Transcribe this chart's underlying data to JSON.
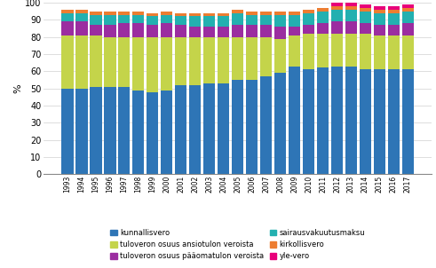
{
  "years": [
    1993,
    1994,
    1995,
    1996,
    1997,
    1998,
    1999,
    2000,
    2001,
    2002,
    2003,
    2004,
    2005,
    2006,
    2007,
    2008,
    2009,
    2010,
    2011,
    2012,
    2013,
    2014,
    2015,
    2016,
    2017
  ],
  "kunnallisvero": [
    50,
    50,
    51,
    51,
    51,
    49,
    48,
    49,
    52,
    52,
    53,
    53,
    55,
    55,
    57,
    59,
    63,
    61,
    62,
    63,
    63,
    61,
    61,
    61,
    61
  ],
  "ansiotulo": [
    31,
    31,
    30,
    29,
    29,
    31,
    32,
    31,
    28,
    28,
    27,
    27,
    25,
    25,
    23,
    20,
    18,
    21,
    20,
    19,
    19,
    21,
    20,
    20,
    20
  ],
  "paaomatulo": [
    8,
    8,
    6,
    7,
    8,
    8,
    7,
    8,
    7,
    6,
    6,
    6,
    7,
    7,
    7,
    7,
    5,
    5,
    6,
    7,
    7,
    6,
    6,
    6,
    7
  ],
  "sairausvakuutus": [
    5,
    5,
    6,
    6,
    5,
    5,
    5,
    5,
    5,
    6,
    6,
    6,
    7,
    6,
    6,
    7,
    7,
    7,
    7,
    7,
    7,
    7,
    7,
    7,
    7
  ],
  "kirkollisvero": [
    2,
    2,
    2,
    2,
    2,
    2,
    2,
    2,
    2,
    2,
    2,
    2,
    2,
    2,
    2,
    2,
    2,
    2,
    2,
    2,
    2,
    2,
    2,
    2,
    2
  ],
  "yle_vero": [
    0,
    0,
    0,
    0,
    0,
    0,
    0,
    0,
    0,
    0,
    0,
    0,
    0,
    0,
    0,
    0,
    0,
    0,
    0,
    2,
    2,
    2,
    2,
    2,
    2
  ],
  "colors": {
    "kunnallisvero": "#2e75b6",
    "ansiotulo": "#c4d44a",
    "paaomatulo": "#9b2da0",
    "sairausvakuutus": "#23b0b0",
    "kirkollisvero": "#ed7d31",
    "yle_vero": "#e8007a"
  },
  "legend_labels": {
    "kunnallisvero": "kunnallisvero",
    "ansiotulo": "tuloveron osuus ansiotulon veroista",
    "paaomatulo": "tuloveron osuus pääomatulon veroista",
    "sairausvakuutus": "sairausvakuutusmaksu",
    "kirkollisvero": "kirkollisvero",
    "yle_vero": "yle-vero"
  },
  "ylabel": "%",
  "ylim": [
    0,
    100
  ],
  "yticks": [
    0,
    10,
    20,
    30,
    40,
    50,
    60,
    70,
    80,
    90,
    100
  ],
  "background_color": "#ffffff",
  "grid_color": "#d0d0d0"
}
